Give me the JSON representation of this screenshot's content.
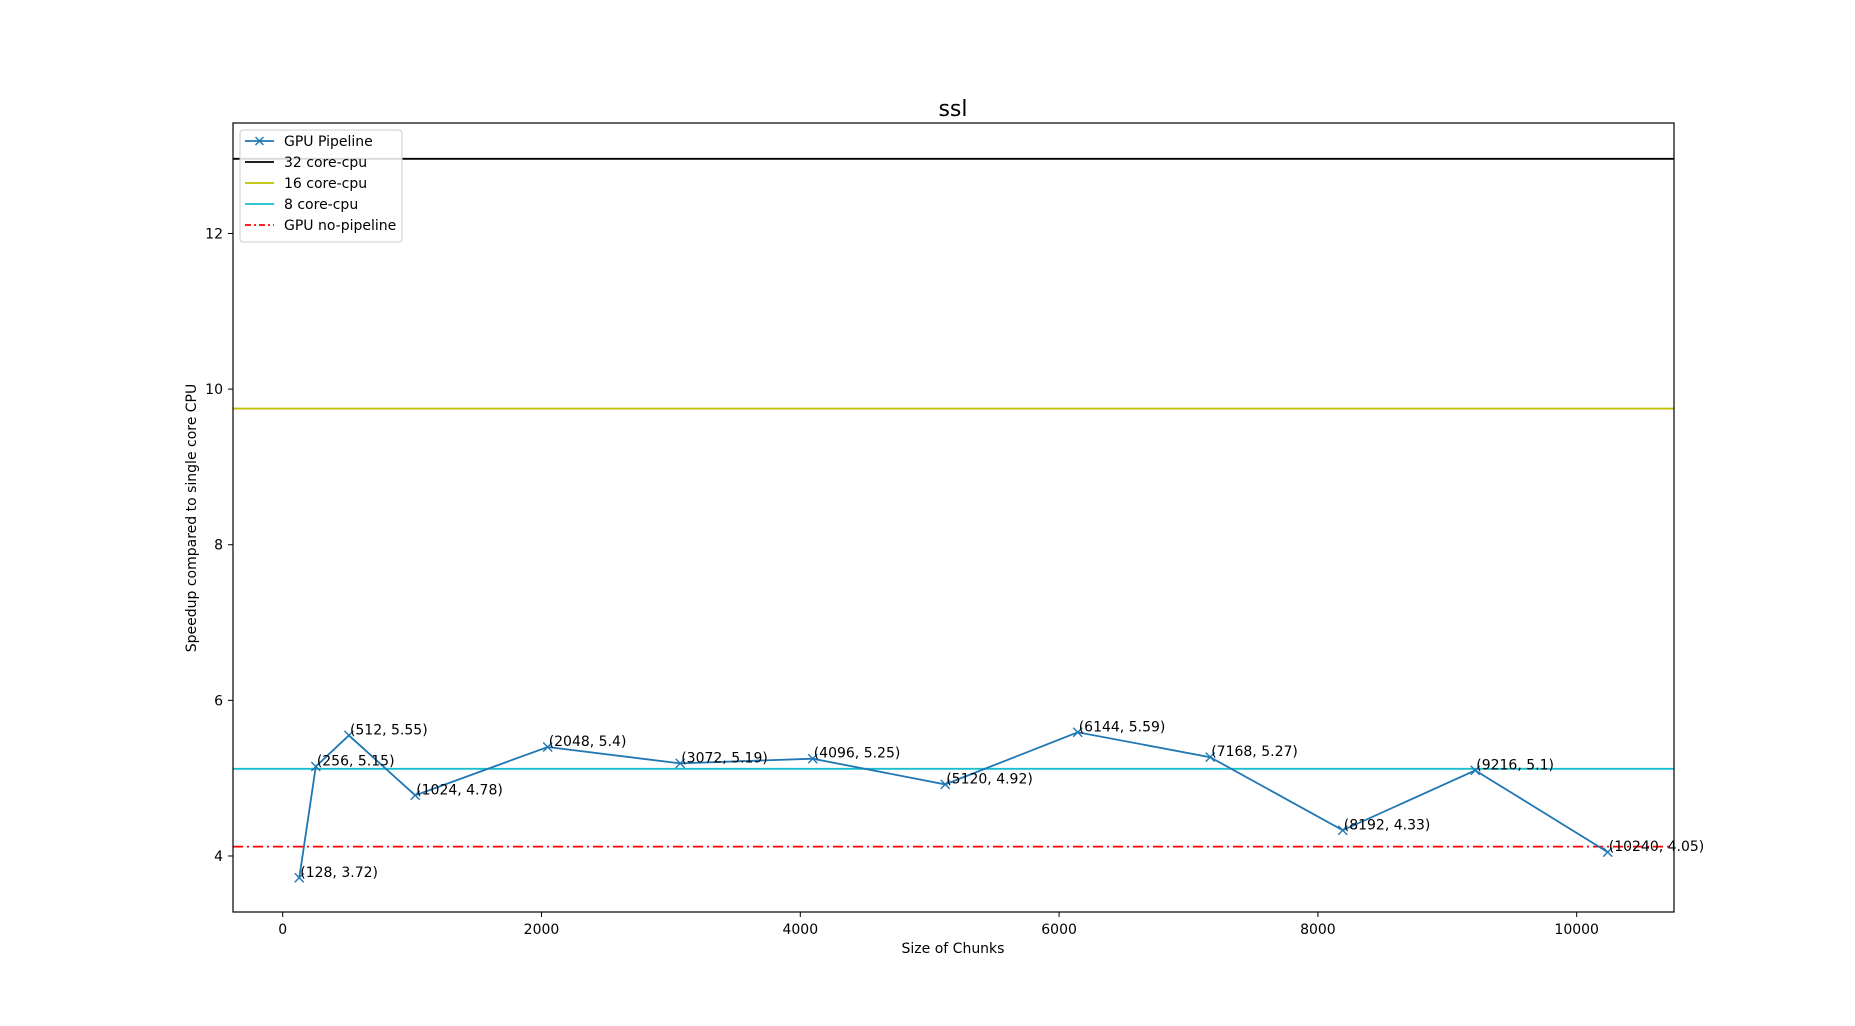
{
  "chart_data": {
    "type": "line",
    "title": "ssl",
    "xlabel": "Size of Chunks",
    "ylabel": "Speedup compared to single core CPU",
    "xlim": [
      -384,
      10752
    ],
    "ylim": [
      3.28,
      13.42
    ],
    "xticks": [
      0,
      2000,
      4000,
      6000,
      8000,
      10000
    ],
    "yticks": [
      4,
      6,
      8,
      10,
      12
    ],
    "grid": false,
    "legend_position": "upper-left",
    "series": [
      {
        "name": "GPU Pipeline",
        "kind": "line-marker",
        "color": "#1f77b4",
        "marker": "x",
        "x": [
          128,
          256,
          512,
          1024,
          2048,
          3072,
          4096,
          5120,
          6144,
          7168,
          8192,
          9216,
          10240
        ],
        "y": [
          3.72,
          5.15,
          5.55,
          4.78,
          5.4,
          5.19,
          5.25,
          4.92,
          5.59,
          5.27,
          4.33,
          5.1,
          4.05
        ],
        "labels": [
          "(128, 3.72)",
          "(256, 5.15)",
          "(512, 5.55)",
          "(1024, 4.78)",
          "(2048, 5.4)",
          "(3072, 5.19)",
          "(4096, 5.25)",
          "(5120, 4.92)",
          "(6144, 5.59)",
          "(7168, 5.27)",
          "(8192, 4.33)",
          "(9216, 5.1)",
          "(10240, 4.05)"
        ]
      },
      {
        "name": "32 core-cpu",
        "kind": "hline",
        "color": "#000000",
        "dash": "solid",
        "y": 12.96
      },
      {
        "name": "16 core-cpu",
        "kind": "hline",
        "color": "#bfbf00",
        "dash": "solid",
        "y": 9.75
      },
      {
        "name": "8 core-cpu",
        "kind": "hline",
        "color": "#17becf",
        "dash": "solid",
        "y": 5.12
      },
      {
        "name": "GPU no-pipeline",
        "kind": "hline",
        "color": "#ff0000",
        "dash": "dashdot",
        "y": 4.12
      }
    ]
  }
}
